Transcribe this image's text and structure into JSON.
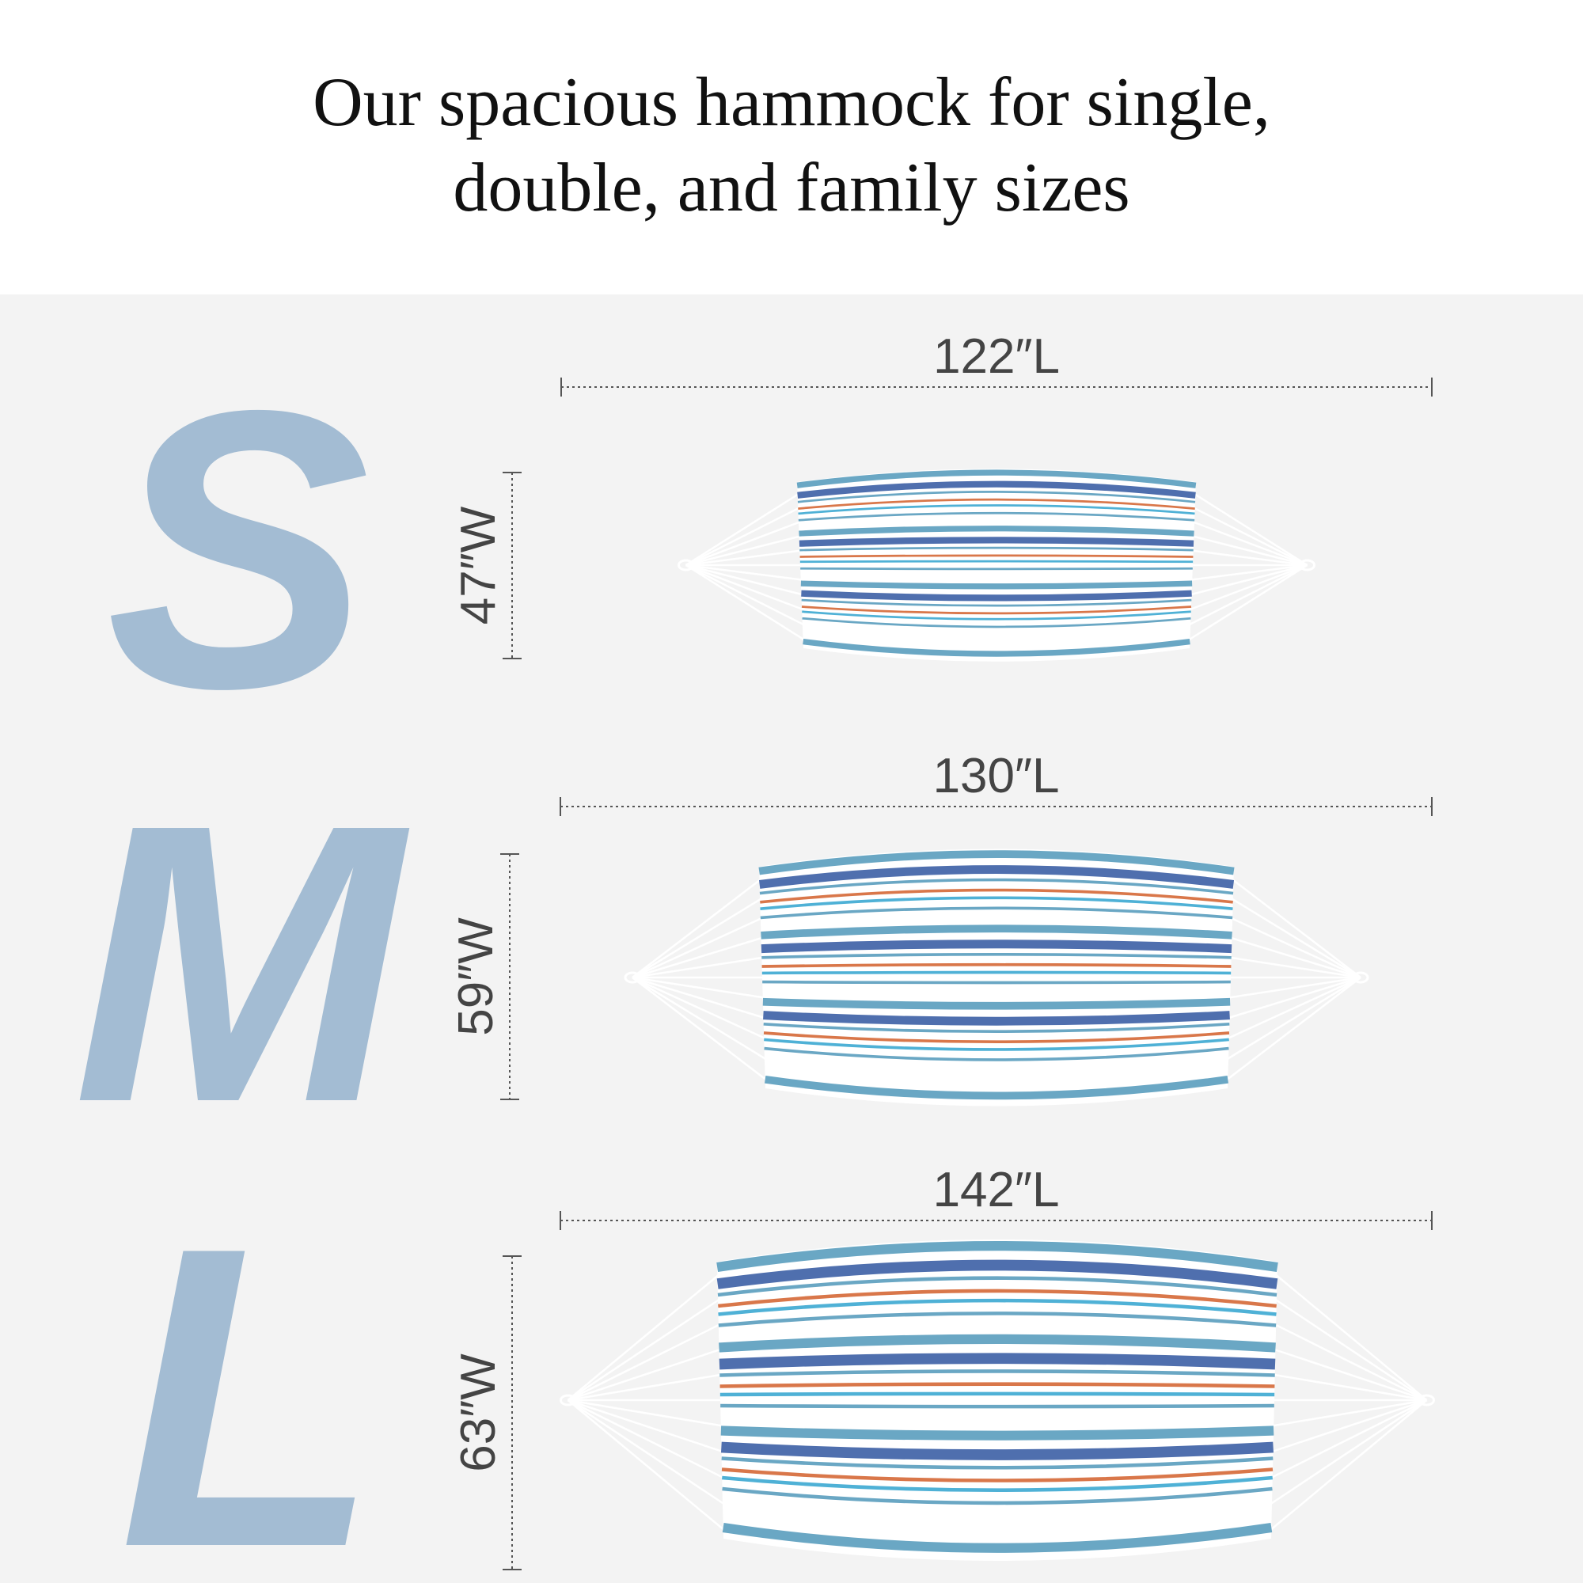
{
  "header": {
    "title_lines": [
      "Our spacious hammock for single,",
      "double, and family sizes"
    ]
  },
  "sizes": [
    {
      "letter": "S",
      "length": "122″L",
      "width": "47″W"
    },
    {
      "letter": "M",
      "length": "130″L",
      "width": "59″W"
    },
    {
      "letter": "L",
      "length": "142″L",
      "width": "63″W"
    }
  ]
}
